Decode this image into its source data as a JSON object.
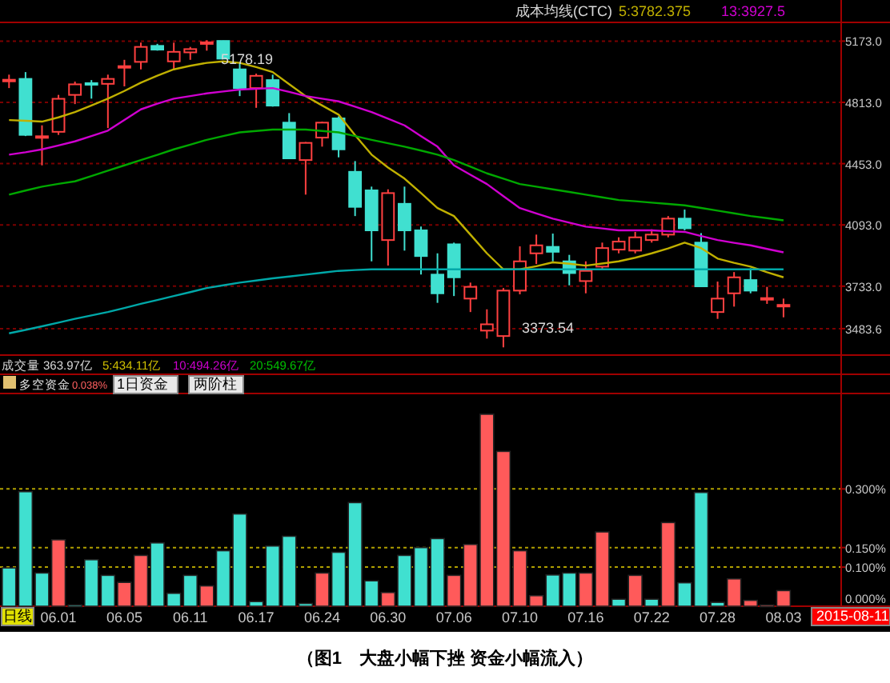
{
  "chart_data": [
    {
      "type": "candlestick",
      "categories": [
        null,
        null,
        null,
        "06.01",
        null,
        null,
        null,
        "06.05",
        null,
        null,
        null,
        "06.11",
        null,
        null,
        null,
        "06.17",
        null,
        null,
        null,
        "06.24",
        null,
        null,
        null,
        "06.30",
        null,
        null,
        null,
        "07.06",
        null,
        null,
        null,
        "07.10",
        null,
        null,
        null,
        "07.16",
        null,
        null,
        null,
        "07.22",
        null,
        null,
        null,
        "07.28",
        null,
        null,
        null,
        "08.03"
      ],
      "ohlc": [
        [
          4940,
          4976,
          4897,
          4946
        ],
        [
          4951,
          4991,
          4615,
          4622
        ],
        [
          4608,
          4678,
          4443,
          4614
        ],
        [
          4640,
          4857,
          4622,
          4834
        ],
        [
          4857,
          4935,
          4803,
          4919
        ],
        [
          4926,
          4944,
          4835,
          4917
        ],
        [
          4922,
          4976,
          4662,
          4951
        ],
        [
          5020,
          5063,
          4907,
          5026
        ],
        [
          5051,
          5164,
          5007,
          5139
        ],
        [
          5145,
          5157,
          5117,
          5123
        ],
        [
          5054,
          5164,
          5007,
          5110
        ],
        [
          5107,
          5139,
          5063,
          5126
        ],
        [
          5160,
          5178.19,
          5117,
          5166
        ],
        [
          5174,
          5176,
          5070,
          5070
        ],
        [
          5007,
          5045,
          4850,
          4897
        ],
        [
          4897,
          4982,
          4781,
          4969
        ],
        [
          4944,
          4976,
          4788,
          4794
        ],
        [
          4694,
          4750,
          4484,
          4484
        ],
        [
          4474,
          4580,
          4271,
          4575
        ],
        [
          4606,
          4700,
          4553,
          4694
        ],
        [
          4719,
          4731,
          4490,
          4537
        ],
        [
          4405,
          4468,
          4145,
          4199
        ],
        [
          4296,
          4318,
          3879,
          4061
        ],
        [
          4004,
          4302,
          3854,
          4280
        ],
        [
          4217,
          4318,
          3942,
          4061
        ],
        [
          4061,
          4083,
          3801,
          3910
        ],
        [
          3801,
          3926,
          3635,
          3691
        ],
        [
          3979,
          3989,
          3675,
          3785
        ],
        [
          3660,
          3754,
          3581,
          3729
        ],
        [
          3472,
          3597,
          3425,
          3509
        ],
        [
          3440,
          3722,
          3373.54,
          3707
        ],
        [
          3707,
          3967,
          3685,
          3879
        ],
        [
          3926,
          4036,
          3863,
          3973
        ],
        [
          3964,
          4042,
          3879,
          3935
        ],
        [
          3879,
          3917,
          3738,
          3810
        ],
        [
          3763,
          3879,
          3691,
          3823
        ],
        [
          3848,
          3989,
          3832,
          3957
        ],
        [
          3948,
          4020,
          3926,
          3995
        ],
        [
          3942,
          4052,
          3926,
          4020
        ],
        [
          4004,
          4067,
          3989,
          4036
        ],
        [
          4036,
          4145,
          4020,
          4130
        ],
        [
          4130,
          4183,
          4061,
          4073
        ],
        [
          3989,
          4045,
          3732,
          3732
        ],
        [
          3581,
          3760,
          3541,
          3660
        ],
        [
          3691,
          3816,
          3613,
          3785
        ],
        [
          3769,
          3838,
          3691,
          3707
        ],
        [
          3656,
          3729,
          3629,
          3663
        ],
        [
          3617,
          3660,
          3550,
          3623
        ]
      ],
      "colors": [
        "#ff4040",
        "#40e0d0",
        "#ff4040",
        "#ff4040",
        "#ff4040",
        "#40e0d0",
        "#ff4040",
        "#ff4040",
        "#ff4040",
        "#40e0d0",
        "#ff4040",
        "#ff4040",
        "#ff4040",
        "#40e0d0",
        "#40e0d0",
        "#ff4040",
        "#40e0d0",
        "#40e0d0",
        "#ff4040",
        "#ff4040",
        "#40e0d0",
        "#40e0d0",
        "#40e0d0",
        "#ff4040",
        "#40e0d0",
        "#40e0d0",
        "#40e0d0",
        "#40e0d0",
        "#ff4040",
        "#ff4040",
        "#ff4040",
        "#ff4040",
        "#ff4040",
        "#40e0d0",
        "#40e0d0",
        "#ff4040",
        "#ff4040",
        "#ff4040",
        "#ff4040",
        "#ff4040",
        "#ff4040",
        "#40e0d0",
        "#40e0d0",
        "#ff4040",
        "#ff4040",
        "#40e0d0",
        "#ff4040",
        "#ff4040"
      ],
      "series": [
        {
          "type": "line",
          "name": "5:3782.375",
          "color": "#c0b000",
          "values": [
            4709,
            4705,
            4700,
            4725,
            4756,
            4795,
            4835,
            4880,
            4929,
            4970,
            5007,
            5028,
            5045,
            5054,
            5045,
            5020,
            4991,
            4920,
            4850,
            4795,
            4741,
            4620,
            4506,
            4430,
            4365,
            4280,
            4192,
            4145,
            4036,
            3926,
            3832,
            3832,
            3850,
            3873,
            3865,
            3854,
            3866,
            3879,
            3900,
            3926,
            3955,
            3989,
            3957,
            3895,
            3870,
            3848,
            3815,
            3785
          ]
        },
        {
          "type": "line",
          "name": "13:3927.5",
          "color": "#d000d0",
          "values": [
            4506,
            4520,
            4537,
            4560,
            4584,
            4615,
            4647,
            4710,
            4772,
            4805,
            4835,
            4850,
            4866,
            4877,
            4888,
            4893,
            4897,
            4875,
            4850,
            4835,
            4819,
            4788,
            4756,
            4717,
            4678,
            4615,
            4553,
            4443,
            4388,
            4333,
            4262,
            4192,
            4160,
            4130,
            4106,
            4083,
            4072,
            4061,
            4061,
            4061,
            4056,
            4052,
            4028,
            4004,
            3988,
            3973,
            3952,
            3932
          ]
        },
        {
          "type": "line",
          "color": "#00a800",
          "values": [
            4271,
            4295,
            4318,
            4334,
            4349,
            4380,
            4412,
            4443,
            4474,
            4505,
            4537,
            4565,
            4593,
            4615,
            4637,
            4645,
            4653,
            4653,
            4653,
            4645,
            4637,
            4615,
            4593,
            4573,
            4553,
            4530,
            4506,
            4474,
            4435,
            4396,
            4365,
            4333,
            4318,
            4302,
            4287,
            4271,
            4255,
            4239,
            4232,
            4224,
            4216,
            4208,
            4193,
            4177,
            4161,
            4145,
            4133,
            4120
          ]
        },
        {
          "type": "line",
          "color": "#00a8a8",
          "values": [
            3456,
            3476,
            3497,
            3519,
            3541,
            3561,
            3581,
            3605,
            3629,
            3652,
            3675,
            3698,
            3722,
            3738,
            3754,
            3766,
            3779,
            3790,
            3801,
            3812,
            3823,
            3828,
            3832,
            3832,
            3832,
            3832,
            3832,
            3832,
            3832,
            3832,
            3832,
            3832,
            3832,
            3832,
            3832,
            3832,
            3832,
            3832,
            3832,
            3832,
            3832,
            3832,
            3832,
            3832,
            3832,
            3832,
            3832,
            3832
          ]
        }
      ],
      "ylim": [
        3328,
        5283
      ],
      "yticks": [
        {
          "value": 5173,
          "label": "5173.0"
        },
        {
          "value": 4813,
          "label": "4813.0"
        },
        {
          "value": 4453,
          "label": "4453.0"
        },
        {
          "value": 4093,
          "label": "4093.0"
        },
        {
          "value": 3733,
          "label": "3733.0"
        },
        {
          "value": 3483.6,
          "label": "3483.6"
        }
      ],
      "tick_labels": "y",
      "grid": "y",
      "annotations": [
        "成本均线(CTC)",
        "5178.19",
        "3373.54"
      ]
    },
    {
      "type": "bar",
      "title": "多空资金",
      "categories": [
        null,
        null,
        null,
        "06.01",
        null,
        null,
        null,
        "06.05",
        null,
        null,
        null,
        "06.11",
        null,
        null,
        null,
        "06.17",
        null,
        null,
        null,
        "06.24",
        null,
        null,
        null,
        "06.30",
        null,
        null,
        null,
        "07.06",
        null,
        null,
        null,
        "07.10",
        null,
        null,
        null,
        "07.16",
        null,
        null,
        null,
        "07.22",
        null,
        null,
        null,
        "07.28",
        null,
        null,
        null,
        "08.03"
      ],
      "values": [
        0.098,
        0.293,
        0.085,
        0.17,
        0.003,
        0.119,
        0.079,
        0.061,
        0.13,
        0.162,
        0.033,
        0.079,
        0.052,
        0.142,
        0.236,
        0.012,
        0.154,
        0.179,
        0.007,
        0.085,
        0.138,
        0.265,
        0.065,
        0.035,
        0.13,
        0.15,
        0.173,
        0.079,
        0.158,
        0.491,
        0.396,
        0.142,
        0.027,
        0.08,
        0.085,
        0.085,
        0.19,
        0.018,
        0.079,
        0.018,
        0.214,
        0.06,
        0.291,
        0.01,
        0.07,
        0.015,
        0.003,
        0.04
      ],
      "colors": [
        "#40e0d0",
        "#40e0d0",
        "#40e0d0",
        "#ff5a5a",
        "#40e0d0",
        "#40e0d0",
        "#40e0d0",
        "#ff5a5a",
        "#ff5a5a",
        "#40e0d0",
        "#40e0d0",
        "#40e0d0",
        "#ff5a5a",
        "#40e0d0",
        "#40e0d0",
        "#40e0d0",
        "#40e0d0",
        "#40e0d0",
        "#40e0d0",
        "#ff5a5a",
        "#40e0d0",
        "#40e0d0",
        "#40e0d0",
        "#ff5a5a",
        "#40e0d0",
        "#40e0d0",
        "#40e0d0",
        "#ff5a5a",
        "#ff5a5a",
        "#ff5a5a",
        "#ff5a5a",
        "#ff5a5a",
        "#ff5a5a",
        "#40e0d0",
        "#40e0d0",
        "#ff5a5a",
        "#ff5a5a",
        "#40e0d0",
        "#ff5a5a",
        "#40e0d0",
        "#ff5a5a",
        "#40e0d0",
        "#40e0d0",
        "#40e0d0",
        "#ff5a5a",
        "#ff5a5a",
        "#ff5a5a",
        "#ff5a5a"
      ],
      "ylim": [
        0,
        0.54
      ],
      "yticks": [
        {
          "value": 0.3,
          "label": "0.300%"
        },
        {
          "value": 0.15,
          "label": "0.150%"
        },
        {
          "value": 0.1,
          "label": "0.100%"
        },
        {
          "value": 0,
          "label": "0.000%"
        }
      ],
      "grid": "y",
      "annotations": [
        "0.038%",
        "1日资金",
        "两阶柱",
        "成交量",
        "363.97亿",
        "5:434.11亿",
        "10:494.26亿",
        "20:549.67亿",
        "日线",
        "2015-08-11",
        "（图1　大盘小幅下挫 资金小幅流入）"
      ]
    }
  ]
}
